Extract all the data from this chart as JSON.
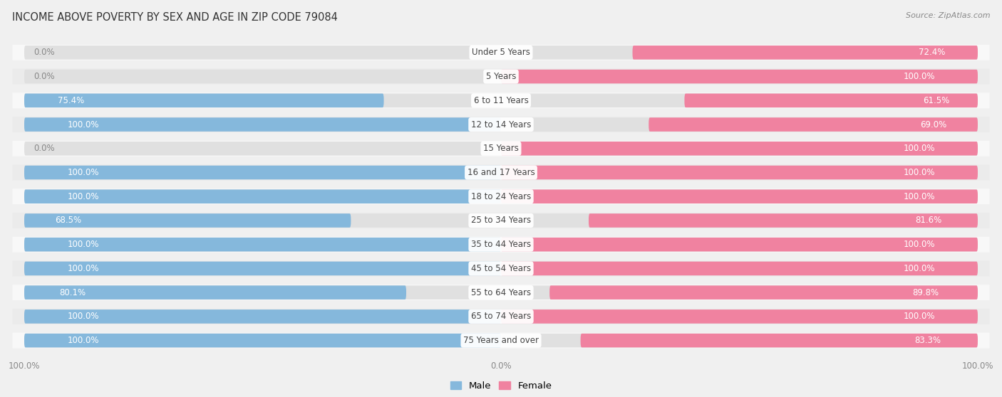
{
  "title": "INCOME ABOVE POVERTY BY SEX AND AGE IN ZIP CODE 79084",
  "source": "Source: ZipAtlas.com",
  "categories": [
    "Under 5 Years",
    "5 Years",
    "6 to 11 Years",
    "12 to 14 Years",
    "15 Years",
    "16 and 17 Years",
    "18 to 24 Years",
    "25 to 34 Years",
    "35 to 44 Years",
    "45 to 54 Years",
    "55 to 64 Years",
    "65 to 74 Years",
    "75 Years and over"
  ],
  "male": [
    0.0,
    0.0,
    75.4,
    100.0,
    0.0,
    100.0,
    100.0,
    68.5,
    100.0,
    100.0,
    80.1,
    100.0,
    100.0
  ],
  "female": [
    72.4,
    100.0,
    61.5,
    69.0,
    100.0,
    100.0,
    100.0,
    81.6,
    100.0,
    100.0,
    89.8,
    100.0,
    83.3
  ],
  "male_color": "#85b8dc",
  "female_color": "#f082a0",
  "bg_color": "#f0f0f0",
  "bar_bg_color": "#e0e0e0",
  "row_bg_light": "#f8f8f8",
  "row_bg_dark": "#ebebeb",
  "title_fontsize": 10.5,
  "source_fontsize": 8,
  "label_fontsize": 8.5,
  "cat_fontsize": 8.5,
  "bar_height": 0.55,
  "xlim_half": 100
}
